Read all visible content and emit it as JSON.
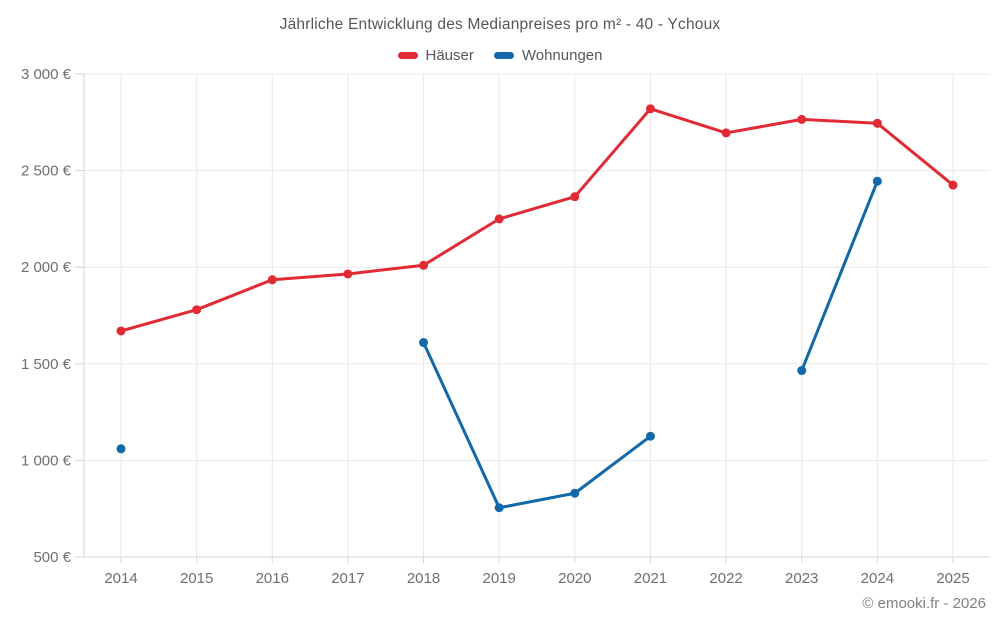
{
  "title": "Jährliche Entwicklung des Medianpreises pro m² - 40 - Ychoux",
  "footer": "© emooki.fr - 2026",
  "chart_data": {
    "type": "line",
    "title": "Jährliche Entwicklung des Medianpreises pro m² - 40 - Ychoux",
    "x": [
      "2014",
      "2015",
      "2016",
      "2017",
      "2018",
      "2019",
      "2020",
      "2021",
      "2022",
      "2023",
      "2024",
      "2025"
    ],
    "series": [
      {
        "name": "Häuser",
        "color": "#e12a33",
        "values": [
          1670,
          1780,
          1935,
          1965,
          2010,
          2250,
          2365,
          2820,
          2695,
          2765,
          2745,
          2425
        ]
      },
      {
        "name": "Wohnungen",
        "color": "#1169aa",
        "values": [
          1060,
          null,
          null,
          null,
          1610,
          755,
          830,
          1125,
          null,
          1465,
          2445,
          null
        ]
      }
    ],
    "ylim": [
      500,
      3000
    ],
    "ytick_values": [
      500,
      1000,
      1500,
      2000,
      2500,
      3000
    ],
    "ytick_labels": [
      "500 €",
      "1 000 €",
      "1 500 €",
      "2 000 €",
      "2 500 €",
      "3 000 €"
    ],
    "grid": true,
    "legend_position": "top",
    "grid_color": "#e9e9e9",
    "axis_color": "#d6d6d6",
    "tick_label_color": "#6f6f6f"
  }
}
